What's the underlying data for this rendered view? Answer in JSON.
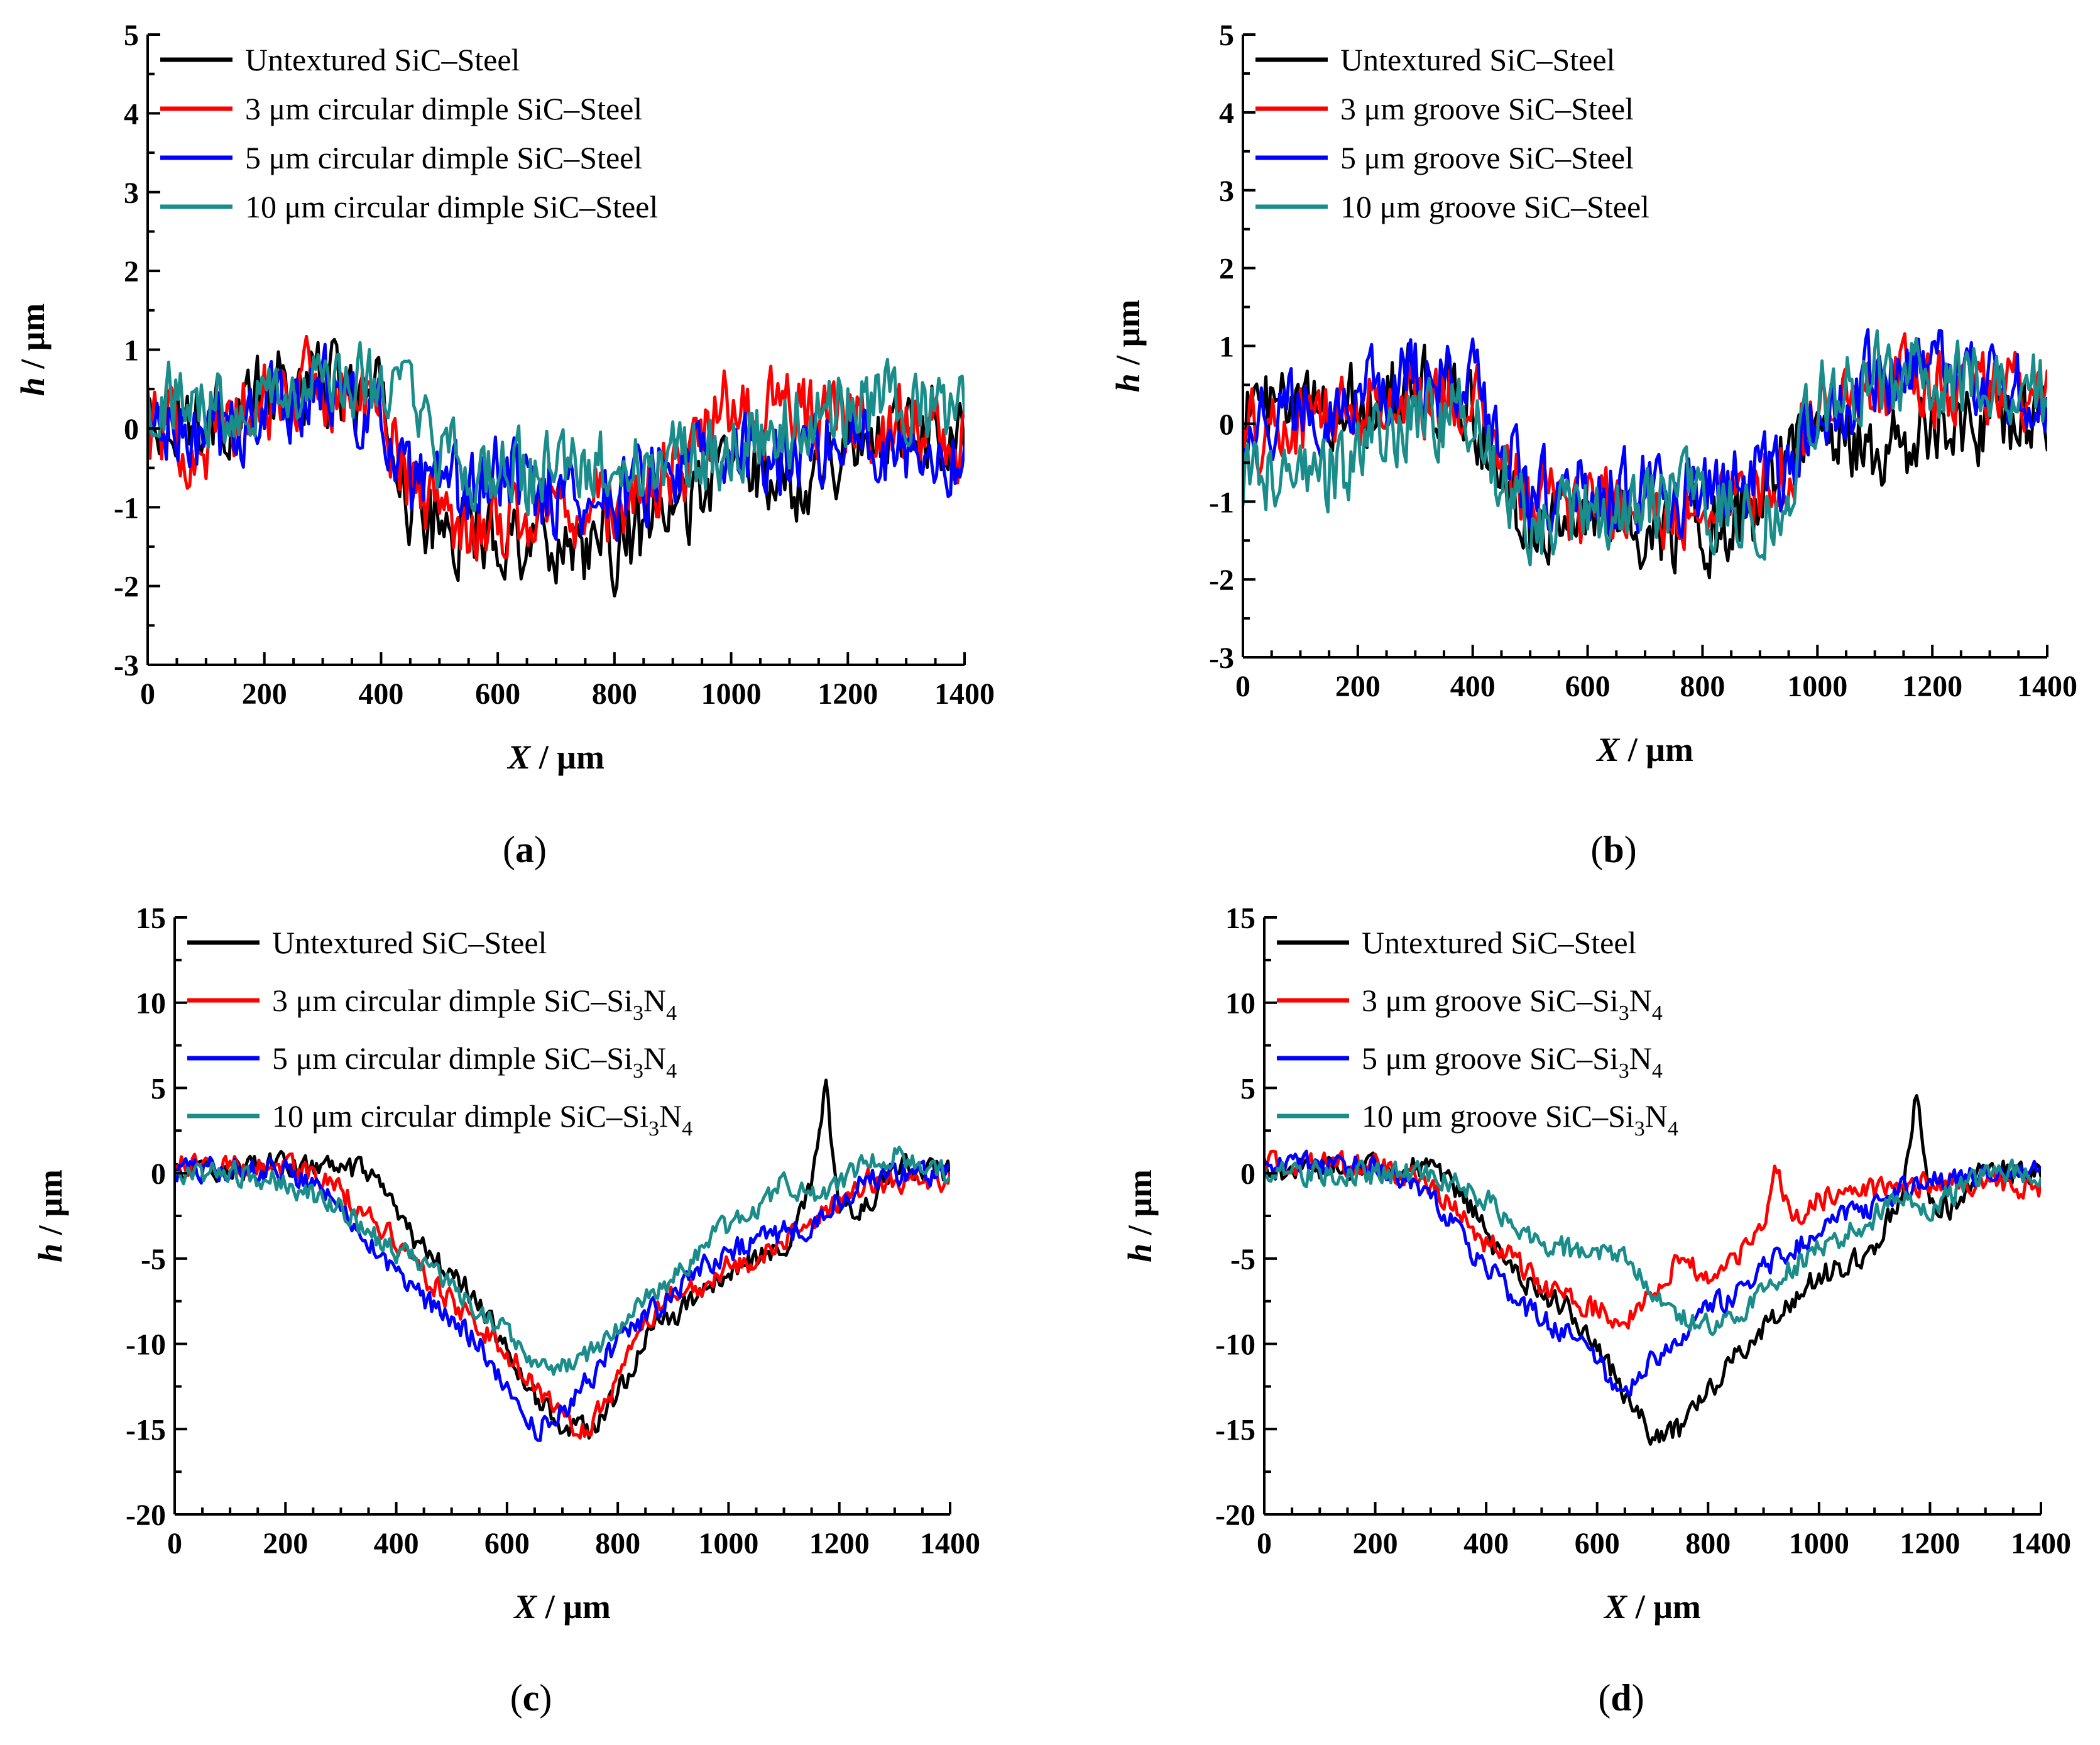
{
  "colors": {
    "untextured": "#000000",
    "3um": "#ff0000",
    "5um": "#0000ff",
    "10um": "#1a8c8a"
  },
  "chart_data": [
    {
      "panel": "(a)",
      "panel_letter": "a",
      "type": "line",
      "xlabel_var": "X",
      "xlabel_unit": " / μm",
      "ylabel_var": "h",
      "ylabel_unit": " / μm",
      "xlim": [
        0,
        1400
      ],
      "ylim": [
        -3,
        5
      ],
      "xticks": [
        0,
        200,
        400,
        600,
        800,
        1000,
        1200,
        1400
      ],
      "yticks": [
        -3,
        -2,
        -1,
        0,
        1,
        2,
        3,
        4,
        5
      ],
      "legend_position": "top-left",
      "series": [
        {
          "name": "Untextured SiC–Steel",
          "color_key": "untextured",
          "x": [
            0,
            100,
            200,
            300,
            400,
            450,
            500,
            600,
            700,
            800,
            900,
            1000,
            1100,
            1200,
            1300,
            1400
          ],
          "y": [
            0.3,
            0.1,
            0.4,
            0.6,
            0.3,
            -0.9,
            -1.3,
            -1.3,
            -1.4,
            -1.5,
            -1.1,
            -0.4,
            -0.7,
            -0.2,
            0.1,
            0.0
          ]
        },
        {
          "name": "3 μm circular dimple SiC–Steel",
          "color_key": "3um",
          "x": [
            0,
            100,
            200,
            300,
            400,
            450,
            500,
            600,
            700,
            800,
            900,
            1000,
            1100,
            1200,
            1300,
            1400
          ],
          "y": [
            0.0,
            -0.2,
            0.3,
            0.6,
            0.2,
            -0.6,
            -1.1,
            -1.2,
            -1.0,
            -1.0,
            -0.6,
            0.3,
            0.2,
            0.1,
            0.1,
            -0.3
          ]
        },
        {
          "name": "5 μm circular dimple SiC–Steel",
          "color_key": "5um",
          "x": [
            0,
            100,
            200,
            300,
            400,
            450,
            500,
            600,
            700,
            800,
            900,
            1000,
            1100,
            1200,
            1300,
            1400
          ],
          "y": [
            0.0,
            -0.2,
            0.2,
            0.6,
            0.0,
            -0.8,
            -0.9,
            -0.6,
            -0.8,
            -0.9,
            -0.5,
            -0.4,
            -0.3,
            -0.1,
            -0.2,
            -0.3
          ]
        },
        {
          "name": "10 μm circular dimple SiC–Steel",
          "color_key": "10um",
          "x": [
            0,
            100,
            200,
            300,
            400,
            450,
            500,
            600,
            700,
            800,
            900,
            1000,
            1100,
            1200,
            1300,
            1400
          ],
          "y": [
            0.4,
            0.3,
            0.5,
            0.5,
            0.6,
            0.3,
            -0.4,
            -0.6,
            -0.6,
            -0.5,
            -0.4,
            -0.2,
            0.0,
            0.3,
            0.2,
            0.1
          ]
        }
      ]
    },
    {
      "panel": "(b)",
      "panel_letter": "b",
      "type": "line",
      "xlabel_var": "X",
      "xlabel_unit": " / μm",
      "ylabel_var": "h",
      "ylabel_unit": " / μm",
      "xlim": [
        0,
        1400
      ],
      "ylim": [
        -3,
        5
      ],
      "xticks": [
        0,
        200,
        400,
        600,
        800,
        1000,
        1200,
        1400
      ],
      "yticks": [
        -3,
        -2,
        -1,
        0,
        1,
        2,
        3,
        4,
        5
      ],
      "legend_position": "top-left",
      "series": [
        {
          "name": "Untextured SiC–Steel",
          "color_key": "untextured",
          "x": [
            0,
            100,
            200,
            300,
            400,
            450,
            500,
            600,
            700,
            800,
            900,
            950,
            1000,
            1100,
            1200,
            1300,
            1400
          ],
          "y": [
            0.2,
            0.1,
            0.3,
            0.5,
            0.3,
            -0.8,
            -1.2,
            -1.2,
            -1.3,
            -1.4,
            -1.1,
            -0.3,
            0.2,
            -0.4,
            0.0,
            0.0,
            0.0
          ]
        },
        {
          "name": "3 μm groove SiC–Steel",
          "color_key": "3um",
          "x": [
            0,
            100,
            200,
            300,
            400,
            450,
            500,
            600,
            700,
            800,
            900,
            950,
            1000,
            1100,
            1200,
            1300,
            1400
          ],
          "y": [
            -0.2,
            0.0,
            0.2,
            0.4,
            0.3,
            -0.5,
            -1.0,
            -1.1,
            -1.1,
            -1.1,
            -0.8,
            -0.6,
            0.3,
            0.6,
            0.5,
            0.5,
            0.2
          ]
        },
        {
          "name": "5 μm groove SiC–Steel",
          "color_key": "5um",
          "x": [
            0,
            100,
            200,
            300,
            400,
            450,
            500,
            600,
            700,
            800,
            900,
            950,
            1000,
            1100,
            1200,
            1300,
            1400
          ],
          "y": [
            0.0,
            0.2,
            0.3,
            0.6,
            0.5,
            -0.3,
            -0.8,
            -0.9,
            -0.9,
            -0.9,
            -0.7,
            -0.6,
            0.0,
            0.6,
            0.7,
            0.5,
            0.3
          ]
        },
        {
          "name": "10 μm groove SiC–Steel",
          "color_key": "10um",
          "x": [
            0,
            100,
            200,
            300,
            400,
            450,
            500,
            600,
            700,
            800,
            900,
            950,
            1000,
            1100,
            1200,
            1300,
            1400
          ],
          "y": [
            -0.6,
            -0.8,
            -0.4,
            0.2,
            0.0,
            -0.6,
            -1.3,
            -1.2,
            -0.9,
            -1.0,
            -1.1,
            -0.8,
            0.3,
            0.6,
            0.6,
            0.6,
            0.3
          ]
        }
      ]
    },
    {
      "panel": "(c)",
      "panel_letter": "c",
      "type": "line",
      "xlabel_var": "X",
      "xlabel_unit": " / μm",
      "ylabel_var": "h",
      "ylabel_unit": " / μm",
      "xlim": [
        0,
        1400
      ],
      "ylim": [
        -20,
        15
      ],
      "xticks": [
        0,
        200,
        400,
        600,
        800,
        1000,
        1200,
        1400
      ],
      "yticks": [
        -20,
        -15,
        -10,
        -5,
        0,
        5,
        10,
        15
      ],
      "legend_position": "top-left",
      "series": [
        {
          "name": "Untextured SiC–Steel",
          "color_key": "untextured",
          "x": [
            0,
            100,
            200,
            300,
            350,
            400,
            450,
            500,
            550,
            600,
            650,
            700,
            750,
            800,
            850,
            900,
            950,
            1000,
            1050,
            1100,
            1150,
            1175,
            1200,
            1250,
            1300,
            1400
          ],
          "y": [
            0.0,
            0.3,
            0.5,
            0.2,
            0.0,
            -2.5,
            -4.5,
            -6.0,
            -7.5,
            -10.5,
            -13.0,
            -15.0,
            -15.0,
            -13.0,
            -9.5,
            -8.5,
            -7.0,
            -6.0,
            -5.0,
            -4.5,
            -1.0,
            5.0,
            -2.0,
            -2.0,
            0.5,
            0.0
          ]
        },
        {
          "name": "3 μm circular dimple SiC–Si",
          "name_sub1": "3",
          "name_mid": "N",
          "name_sub2": "4",
          "color_key": "3um",
          "x": [
            0,
            100,
            200,
            300,
            350,
            400,
            450,
            500,
            550,
            600,
            650,
            700,
            750,
            800,
            850,
            900,
            950,
            1000,
            1050,
            1100,
            1150,
            1200,
            1250,
            1300,
            1400
          ],
          "y": [
            0.5,
            0.5,
            0.5,
            -1.0,
            -2.5,
            -4.0,
            -6.0,
            -7.5,
            -9.0,
            -10.5,
            -12.5,
            -14.5,
            -15.0,
            -12.0,
            -9.0,
            -7.0,
            -6.5,
            -5.5,
            -5.0,
            -4.0,
            -3.0,
            -1.5,
            -0.5,
            -0.5,
            -0.5
          ]
        },
        {
          "name": "5 μm circular dimple SiC–Si",
          "name_sub1": "3",
          "name_mid": "N",
          "name_sub2": "4",
          "color_key": "5um",
          "x": [
            0,
            100,
            200,
            300,
            350,
            400,
            450,
            500,
            550,
            600,
            650,
            700,
            750,
            800,
            850,
            900,
            950,
            1000,
            1050,
            1100,
            1150,
            1200,
            1250,
            1300,
            1400
          ],
          "y": [
            0.2,
            0.3,
            0.2,
            -1.5,
            -4.0,
            -6.0,
            -7.5,
            -8.5,
            -10.0,
            -12.5,
            -15.0,
            -14.0,
            -12.0,
            -10.0,
            -8.5,
            -7.0,
            -5.5,
            -4.5,
            -4.0,
            -3.5,
            -3.0,
            -1.5,
            -0.5,
            0.0,
            0.0
          ]
        },
        {
          "name": "10 μm circular dimple SiC–Si",
          "name_sub1": "3",
          "name_mid": "N",
          "name_sub2": "4",
          "color_key": "10um",
          "x": [
            0,
            100,
            200,
            300,
            350,
            400,
            450,
            500,
            550,
            600,
            650,
            700,
            750,
            800,
            850,
            900,
            950,
            1000,
            1050,
            1100,
            1150,
            1200,
            1250,
            1300,
            1400
          ],
          "y": [
            0.0,
            0.0,
            -0.5,
            -2.0,
            -3.5,
            -4.5,
            -5.5,
            -6.5,
            -8.0,
            -9.5,
            -11.0,
            -11.5,
            -10.5,
            -9.0,
            -7.5,
            -6.0,
            -4.5,
            -3.0,
            -2.0,
            -0.5,
            -1.5,
            -0.5,
            0.5,
            1.0,
            0.0
          ]
        }
      ]
    },
    {
      "panel": "(d)",
      "panel_letter": "d",
      "type": "line",
      "xlabel_var": "X",
      "xlabel_unit": " / μm",
      "ylabel_var": "h",
      "ylabel_unit": " / μm",
      "xlim": [
        0,
        1400
      ],
      "ylim": [
        -20,
        15
      ],
      "xticks": [
        0,
        200,
        400,
        600,
        800,
        1000,
        1200,
        1400
      ],
      "yticks": [
        -20,
        -15,
        -10,
        -5,
        0,
        5,
        10,
        15
      ],
      "legend_position": "top-left",
      "series": [
        {
          "name": "Untextured SiC–Steel",
          "color_key": "untextured",
          "x": [
            0,
            100,
            200,
            300,
            350,
            400,
            450,
            500,
            550,
            600,
            650,
            700,
            750,
            800,
            850,
            900,
            950,
            1000,
            1050,
            1100,
            1150,
            1175,
            1200,
            1250,
            1300,
            1400
          ],
          "y": [
            0.0,
            0.3,
            0.5,
            0.2,
            -1.0,
            -3.5,
            -6.0,
            -7.0,
            -8.0,
            -10.0,
            -13.0,
            -15.5,
            -15.0,
            -13.0,
            -10.5,
            -9.0,
            -7.5,
            -6.0,
            -5.5,
            -4.5,
            -1.0,
            5.0,
            -2.0,
            -2.0,
            0.5,
            0.0
          ]
        },
        {
          "name": "3 μm groove SiC–Si",
          "name_sub1": "3",
          "name_mid": "N",
          "name_sub2": "4",
          "color_key": "3um",
          "x": [
            0,
            100,
            200,
            300,
            350,
            400,
            450,
            500,
            550,
            600,
            650,
            700,
            750,
            800,
            850,
            900,
            920,
            950,
            1000,
            1100,
            1200,
            1300,
            1400
          ],
          "y": [
            0.5,
            0.5,
            0.3,
            -0.5,
            -2.5,
            -4.0,
            -5.0,
            -6.5,
            -7.5,
            -8.0,
            -8.5,
            -7.0,
            -5.0,
            -6.0,
            -5.0,
            -3.0,
            0.5,
            -3.0,
            -1.5,
            -1.0,
            -0.5,
            -0.5,
            -1.0
          ]
        },
        {
          "name": "5 μm groove SiC–Si",
          "name_sub1": "3",
          "name_mid": "N",
          "name_sub2": "4",
          "color_key": "5um",
          "x": [
            0,
            100,
            200,
            300,
            350,
            400,
            450,
            500,
            550,
            600,
            650,
            700,
            750,
            800,
            850,
            900,
            950,
            1000,
            1050,
            1100,
            1150,
            1200,
            1250,
            1300,
            1400
          ],
          "y": [
            0.2,
            0.5,
            0.3,
            -1.0,
            -3.5,
            -5.5,
            -7.5,
            -8.5,
            -9.5,
            -11.0,
            -13.0,
            -11.0,
            -10.0,
            -8.0,
            -7.0,
            -5.5,
            -4.5,
            -3.5,
            -2.5,
            -2.0,
            -1.0,
            -0.5,
            -0.5,
            0.0,
            0.0
          ]
        },
        {
          "name": "10 μm groove SiC–Si",
          "name_sub1": "3",
          "name_mid": "N",
          "name_sub2": "4",
          "color_key": "10um",
          "x": [
            0,
            100,
            200,
            300,
            350,
            400,
            450,
            500,
            550,
            600,
            650,
            700,
            750,
            800,
            850,
            900,
            950,
            1000,
            1050,
            1100,
            1150,
            1200,
            1250,
            1300,
            1400
          ],
          "y": [
            0.0,
            0.0,
            0.0,
            0.0,
            -0.5,
            -1.5,
            -3.0,
            -4.0,
            -4.5,
            -4.5,
            -5.0,
            -7.0,
            -8.5,
            -9.0,
            -8.5,
            -7.0,
            -5.5,
            -4.5,
            -3.5,
            -2.5,
            -1.5,
            -2.0,
            -1.0,
            0.0,
            0.0
          ]
        }
      ]
    }
  ]
}
